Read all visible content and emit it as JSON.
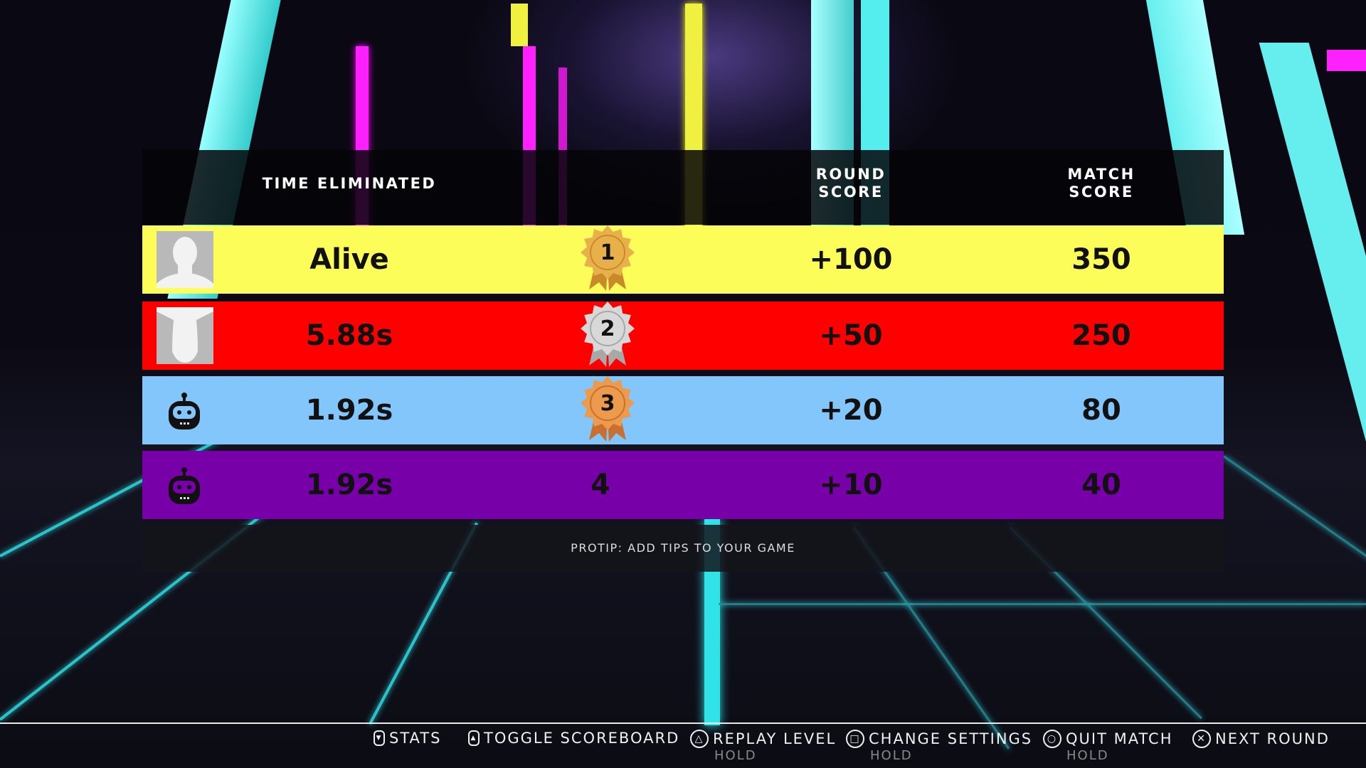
{
  "scoreboard": {
    "headers": {
      "time": "TIME ELIMINATED",
      "round": "ROUND\nSCORE",
      "match": "MATCH\nSCORE",
      "round_l1": "ROUND",
      "round_l2": "SCORE",
      "match_l1": "MATCH",
      "match_l2": "SCORE"
    },
    "rows": [
      {
        "avatar": "player-silhouette",
        "time": "Alive",
        "rank": "1",
        "medal": "gold",
        "round_score": "+100",
        "match_score": "350",
        "color": "#fdfd5a"
      },
      {
        "avatar": "player-silhouette",
        "time": "5.88s",
        "rank": "2",
        "medal": "silver",
        "round_score": "+50",
        "match_score": "250",
        "color": "#fe0000"
      },
      {
        "avatar": "robot-icon",
        "time": "1.92s",
        "rank": "3",
        "medal": "bronze",
        "round_score": "+20",
        "match_score": "80",
        "color": "#82c6fb"
      },
      {
        "avatar": "robot-icon",
        "time": "1.92s",
        "rank": "4",
        "medal": null,
        "round_score": "+10",
        "match_score": "40",
        "color": "#7800a8"
      }
    ],
    "tip": "PROTIP: ADD TIPS TO YOUR GAME"
  },
  "controls": [
    {
      "icon": "touchpad-down-icon",
      "label": "STATS"
    },
    {
      "icon": "touchpad-up-icon",
      "label": "TOGGLE SCOREBOARD"
    },
    {
      "icon": "triangle-button-icon",
      "label": "REPLAY LEVEL",
      "sub": "HOLD"
    },
    {
      "icon": "square-button-icon",
      "label": "CHANGE SETTINGS",
      "sub": "HOLD"
    },
    {
      "icon": "circle-button-icon",
      "label": "QUIT MATCH",
      "sub": "HOLD"
    },
    {
      "icon": "cross-button-icon",
      "label": "NEXT ROUND"
    }
  ]
}
